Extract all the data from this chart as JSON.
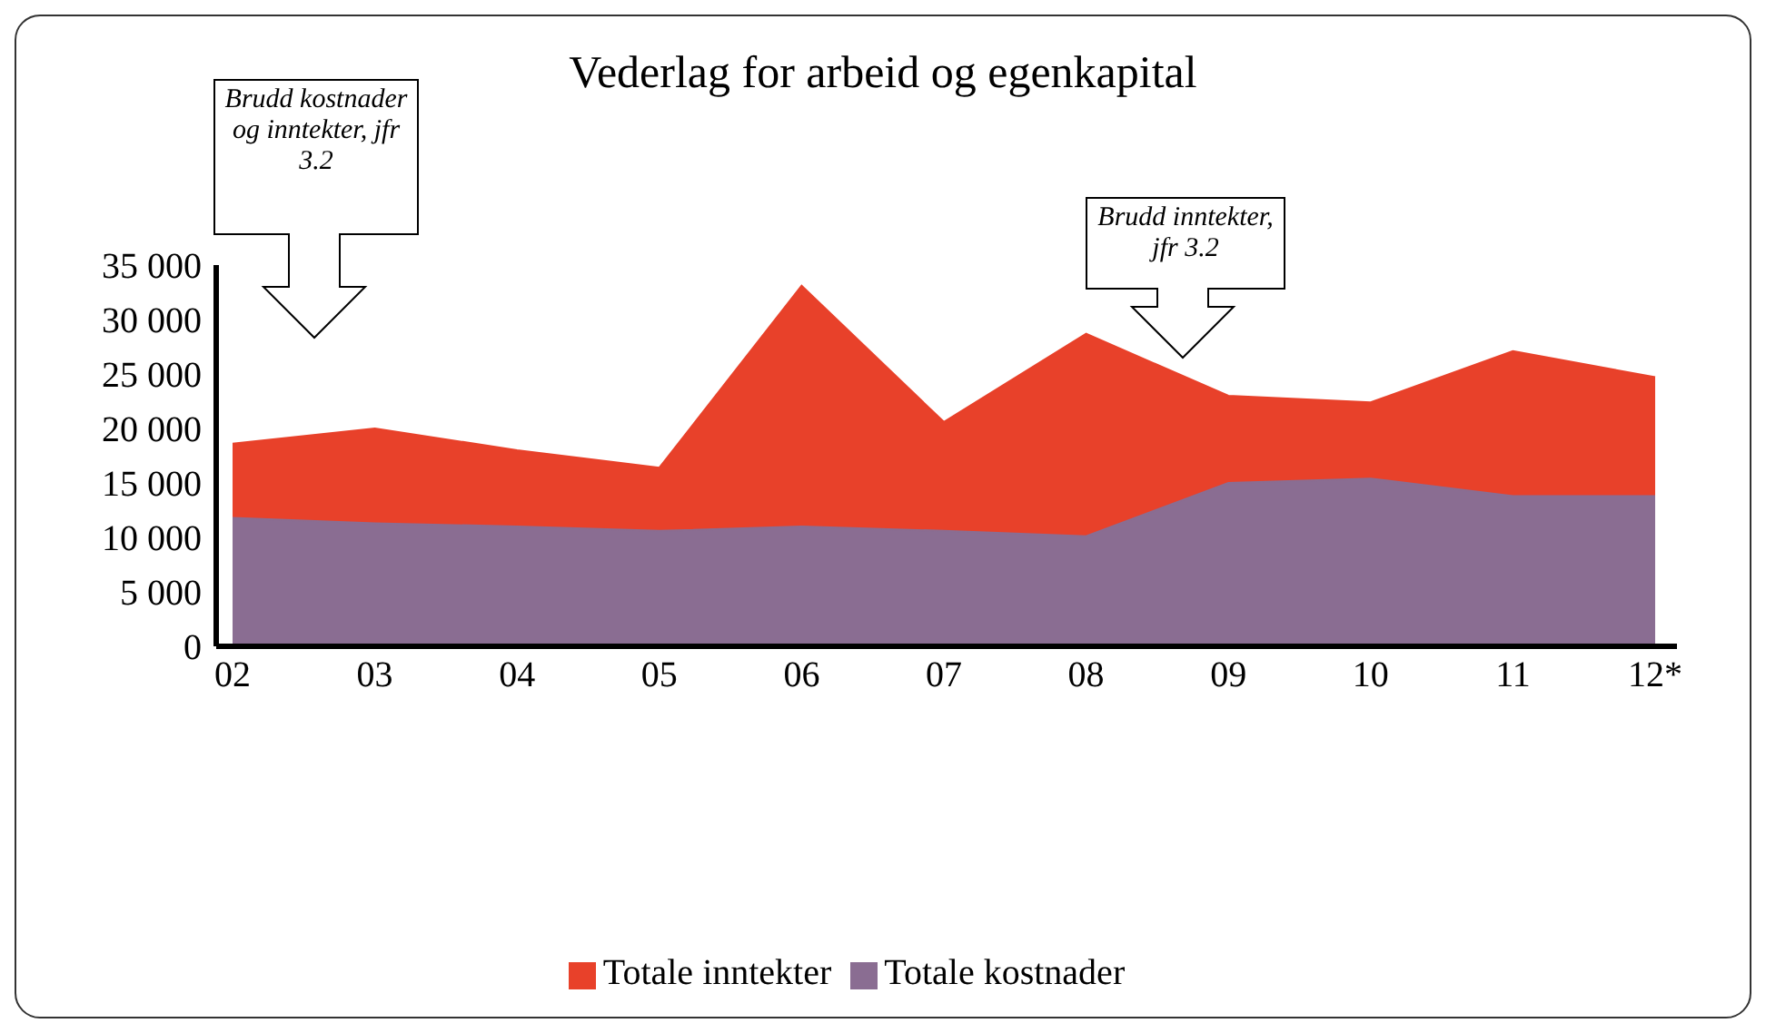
{
  "chart_data": {
    "type": "area",
    "title": "Vederlag for arbeid og egenkapital",
    "categories": [
      "02",
      "03",
      "04",
      "05",
      "06",
      "07",
      "08",
      "09",
      "10",
      "11",
      "12*"
    ],
    "series": [
      {
        "name": "Totale inntekter",
        "color": "#e8412a",
        "values": [
          18600,
          20000,
          18000,
          16400,
          33100,
          20600,
          28700,
          23000,
          22400,
          27100,
          24700
        ]
      },
      {
        "name": "Totale kostnader",
        "color": "#8a6d92",
        "values": [
          11800,
          11300,
          11000,
          10600,
          11000,
          10600,
          10100,
          15000,
          15400,
          13800,
          13800
        ]
      }
    ],
    "ylim": [
      0,
      35000
    ],
    "yticks": [
      0,
      {
        "value": 5000,
        "label": "5 000"
      },
      {
        "value": 10000,
        "label": "10 000"
      },
      {
        "value": 15000,
        "label": "15 000"
      },
      {
        "value": 20000,
        "label": "20 000"
      },
      {
        "value": 25000,
        "label": "25 000"
      },
      {
        "value": 30000,
        "label": "30 000"
      },
      {
        "value": 35000,
        "label": "35 000"
      }
    ],
    "grid": false,
    "legend": "bottom",
    "annotations": [
      "Brudd kostnader og inntekter, jfr 3.2",
      "Brudd inntekter, jfr 3.2"
    ]
  }
}
